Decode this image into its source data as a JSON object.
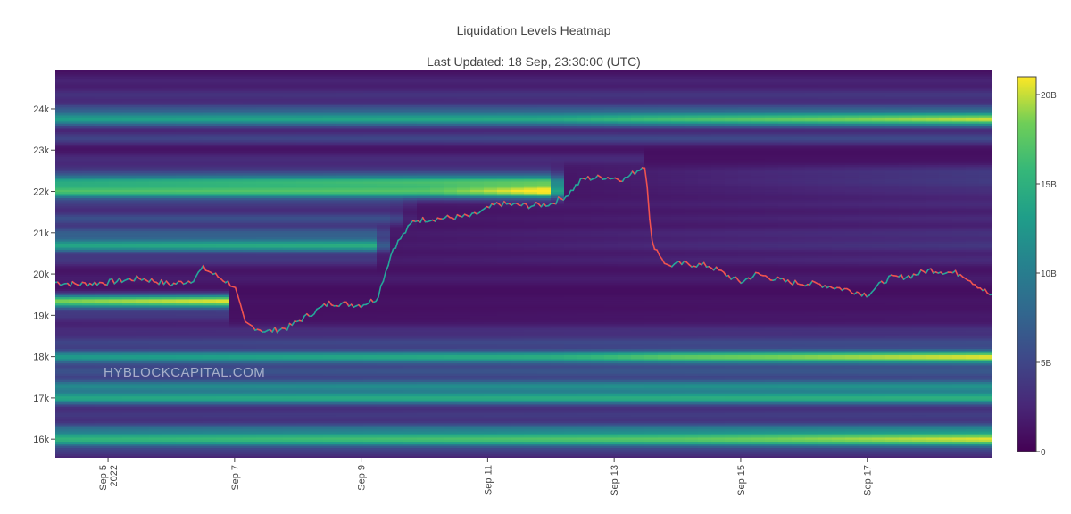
{
  "chart_data": {
    "type": "heatmap",
    "title": "Liquidation Levels Heatmap",
    "subtitle": "Last Updated: 18 Sep, 23:30:00 (UTC)",
    "watermark": "HYBLOCKCAPITAL.COM",
    "x_range": [
      "2022-09-04 04:00",
      "2022-09-18 23:30"
    ],
    "ylim": [
      15550,
      24950
    ],
    "y_ticks": [
      {
        "value": 16000,
        "label": "16k"
      },
      {
        "value": 17000,
        "label": "17k"
      },
      {
        "value": 18000,
        "label": "18k"
      },
      {
        "value": 19000,
        "label": "19k"
      },
      {
        "value": 20000,
        "label": "20k"
      },
      {
        "value": 21000,
        "label": "21k"
      },
      {
        "value": 22000,
        "label": "22k"
      },
      {
        "value": 23000,
        "label": "23k"
      },
      {
        "value": 24000,
        "label": "24k"
      }
    ],
    "x_ticks": [
      {
        "date": "2022-09-05",
        "label": "Sep 5",
        "sublabel": "2022"
      },
      {
        "date": "2022-09-07",
        "label": "Sep 7",
        "sublabel": ""
      },
      {
        "date": "2022-09-09",
        "label": "Sep 9",
        "sublabel": ""
      },
      {
        "date": "2022-09-11",
        "label": "Sep 11",
        "sublabel": ""
      },
      {
        "date": "2022-09-13",
        "label": "Sep 13",
        "sublabel": ""
      },
      {
        "date": "2022-09-15",
        "label": "Sep 15",
        "sublabel": ""
      },
      {
        "date": "2022-09-17",
        "label": "Sep 17",
        "sublabel": ""
      }
    ],
    "colorbar": {
      "colorscale": "viridis",
      "range": [
        0,
        21000000000
      ],
      "ticks": [
        {
          "value": 0,
          "label": "0"
        },
        {
          "value": 5000000000,
          "label": "5B"
        },
        {
          "value": 10000000000,
          "label": "10B"
        },
        {
          "value": 15000000000,
          "label": "15B"
        },
        {
          "value": 20000000000,
          "label": "20B"
        }
      ]
    },
    "liquidation_levels_billions": [
      {
        "price": 24700,
        "profile": [
          [
            "2022-09-04 04:00",
            1.5
          ],
          [
            "2022-09-18 23:30",
            1.5
          ]
        ]
      },
      {
        "price": 24350,
        "profile": [
          [
            "2022-09-04 04:00",
            2.5
          ],
          [
            "2022-09-18 23:30",
            3
          ]
        ]
      },
      {
        "price": 24000,
        "profile": [
          [
            "2022-09-04 04:00",
            5
          ],
          [
            "2022-09-18 23:30",
            5.5
          ]
        ]
      },
      {
        "price": 23750,
        "profile": [
          [
            "2022-09-04 04:00",
            12
          ],
          [
            "2022-09-12 00:00",
            13
          ],
          [
            "2022-09-13 12:00",
            15
          ],
          [
            "2022-09-18 23:30",
            19
          ]
        ]
      },
      {
        "price": 23300,
        "profile": [
          [
            "2022-09-04 04:00",
            4
          ],
          [
            "2022-09-18 23:30",
            4.5
          ]
        ]
      },
      {
        "price": 22800,
        "profile": [
          [
            "2022-09-04 04:00",
            2
          ],
          [
            "2022-09-13 12:00",
            2
          ],
          [
            "2022-09-13 13:00",
            0.2
          ],
          [
            "2022-09-18 23:30",
            0.2
          ]
        ]
      },
      {
        "price": 22500,
        "profile": [
          [
            "2022-09-04 04:00",
            3
          ],
          [
            "2022-09-12 00:00",
            3
          ],
          [
            "2022-09-12 06:00",
            0.6
          ],
          [
            "2022-09-18 23:30",
            3
          ]
        ]
      },
      {
        "price": 22250,
        "profile": [
          [
            "2022-09-04 04:00",
            12
          ],
          [
            "2022-09-12 00:00",
            15
          ],
          [
            "2022-09-12 06:00",
            0.5
          ],
          [
            "2022-09-18 23:30",
            3
          ]
        ]
      },
      {
        "price": 22000,
        "profile": [
          [
            "2022-09-04 04:00",
            15
          ],
          [
            "2022-09-10 00:00",
            15
          ],
          [
            "2022-09-12 00:00",
            20
          ],
          [
            "2022-09-12 06:00",
            0.5
          ],
          [
            "2022-09-18 23:30",
            2
          ]
        ]
      },
      {
        "price": 21700,
        "profile": [
          [
            "2022-09-04 04:00",
            3
          ],
          [
            "2022-09-09 12:00",
            3
          ],
          [
            "2022-09-10 00:00",
            0.6
          ],
          [
            "2022-09-18 23:30",
            2
          ]
        ]
      },
      {
        "price": 21350,
        "profile": [
          [
            "2022-09-04 04:00",
            5
          ],
          [
            "2022-09-09 12:00",
            5
          ],
          [
            "2022-09-09 20:00",
            0.6
          ],
          [
            "2022-09-18 23:30",
            2
          ]
        ]
      },
      {
        "price": 21000,
        "profile": [
          [
            "2022-09-04 04:00",
            6
          ],
          [
            "2022-09-09 06:00",
            6
          ],
          [
            "2022-09-09 12:00",
            0.8
          ],
          [
            "2022-09-18 23:30",
            2.5
          ]
        ]
      },
      {
        "price": 20700,
        "profile": [
          [
            "2022-09-04 04:00",
            13
          ],
          [
            "2022-09-09 06:00",
            14
          ],
          [
            "2022-09-09 10:00",
            0.8
          ],
          [
            "2022-09-18 23:30",
            3
          ]
        ]
      },
      {
        "price": 20350,
        "profile": [
          [
            "2022-09-04 04:00",
            3
          ],
          [
            "2022-09-09 06:00",
            3
          ],
          [
            "2022-09-09 08:00",
            1
          ],
          [
            "2022-09-18 23:30",
            2
          ]
        ]
      },
      {
        "price": 19900,
        "profile": [
          [
            "2022-09-04 04:00",
            1
          ],
          [
            "2022-09-18 23:30",
            1
          ]
        ]
      },
      {
        "price": 19350,
        "profile": [
          [
            "2022-09-04 04:00",
            18
          ],
          [
            "2022-09-06 20:00",
            20
          ],
          [
            "2022-09-07 00:00",
            0.3
          ],
          [
            "2022-09-18 23:30",
            0.5
          ]
        ]
      },
      {
        "price": 19000,
        "profile": [
          [
            "2022-09-04 04:00",
            3
          ],
          [
            "2022-09-06 20:00",
            3
          ],
          [
            "2022-09-07 00:00",
            0.2
          ],
          [
            "2022-09-18 23:30",
            0.8
          ]
        ]
      },
      {
        "price": 18650,
        "profile": [
          [
            "2022-09-04 04:00",
            2
          ],
          [
            "2022-09-18 23:30",
            2.5
          ]
        ]
      },
      {
        "price": 18350,
        "profile": [
          [
            "2022-09-04 04:00",
            4
          ],
          [
            "2022-09-18 23:30",
            4.5
          ]
        ]
      },
      {
        "price": 18000,
        "profile": [
          [
            "2022-09-04 04:00",
            12
          ],
          [
            "2022-09-12 00:00",
            14
          ],
          [
            "2022-09-14 00:00",
            17
          ],
          [
            "2022-09-18 23:30",
            20
          ]
        ]
      },
      {
        "price": 17650,
        "profile": [
          [
            "2022-09-04 04:00",
            5
          ],
          [
            "2022-09-18 23:30",
            5.5
          ]
        ]
      },
      {
        "price": 17300,
        "profile": [
          [
            "2022-09-04 04:00",
            10
          ],
          [
            "2022-09-18 23:30",
            11
          ]
        ]
      },
      {
        "price": 17000,
        "profile": [
          [
            "2022-09-04 04:00",
            13
          ],
          [
            "2022-09-18 23:30",
            14
          ]
        ]
      },
      {
        "price": 16600,
        "profile": [
          [
            "2022-09-04 04:00",
            3
          ],
          [
            "2022-09-18 23:30",
            3.5
          ]
        ]
      },
      {
        "price": 16250,
        "profile": [
          [
            "2022-09-04 04:00",
            7
          ],
          [
            "2022-09-18 23:30",
            9
          ]
        ]
      },
      {
        "price": 16000,
        "profile": [
          [
            "2022-09-04 04:00",
            14
          ],
          [
            "2022-09-14 00:00",
            16
          ],
          [
            "2022-09-18 23:30",
            19
          ]
        ]
      },
      {
        "price": 15700,
        "profile": [
          [
            "2022-09-04 04:00",
            3
          ],
          [
            "2022-09-18 23:30",
            3
          ]
        ]
      }
    ],
    "price_series": [
      [
        "2022-09-04 04:00",
        19800
      ],
      [
        "2022-09-04 12:00",
        19750
      ],
      [
        "2022-09-05 00:00",
        19800
      ],
      [
        "2022-09-05 12:00",
        19900
      ],
      [
        "2022-09-06 00:00",
        19750
      ],
      [
        "2022-09-06 08:00",
        19850
      ],
      [
        "2022-09-06 12:00",
        20150
      ],
      [
        "2022-09-06 20:00",
        19850
      ],
      [
        "2022-09-07 00:00",
        19700
      ],
      [
        "2022-09-07 04:00",
        18800
      ],
      [
        "2022-09-07 12:00",
        18600
      ],
      [
        "2022-09-07 20:00",
        18700
      ],
      [
        "2022-09-08 04:00",
        19000
      ],
      [
        "2022-09-08 12:00",
        19300
      ],
      [
        "2022-09-09 00:00",
        19250
      ],
      [
        "2022-09-09 06:00",
        19400
      ],
      [
        "2022-09-09 12:00",
        20600
      ],
      [
        "2022-09-09 20:00",
        21300
      ],
      [
        "2022-09-10 06:00",
        21350
      ],
      [
        "2022-09-10 18:00",
        21400
      ],
      [
        "2022-09-11 04:00",
        21700
      ],
      [
        "2022-09-11 16:00",
        21650
      ],
      [
        "2022-09-12 00:00",
        21700
      ],
      [
        "2022-09-12 06:00",
        21900
      ],
      [
        "2022-09-12 12:00",
        22300
      ],
      [
        "2022-09-12 20:00",
        22350
      ],
      [
        "2022-09-13 04:00",
        22300
      ],
      [
        "2022-09-13 12:00",
        22650
      ],
      [
        "2022-09-13 14:00",
        20800
      ],
      [
        "2022-09-13 20:00",
        20200
      ],
      [
        "2022-09-14 02:00",
        20250
      ],
      [
        "2022-09-14 12:00",
        20200
      ],
      [
        "2022-09-15 00:00",
        19800
      ],
      [
        "2022-09-15 06:00",
        20000
      ],
      [
        "2022-09-15 18:00",
        19800
      ],
      [
        "2022-09-16 06:00",
        19750
      ],
      [
        "2022-09-16 18:00",
        19600
      ],
      [
        "2022-09-17 00:00",
        19500
      ],
      [
        "2022-09-17 08:00",
        19900
      ],
      [
        "2022-09-17 16:00",
        19950
      ],
      [
        "2022-09-18 00:00",
        20100
      ],
      [
        "2022-09-18 12:00",
        20000
      ],
      [
        "2022-09-18 23:30",
        19450
      ]
    ]
  }
}
